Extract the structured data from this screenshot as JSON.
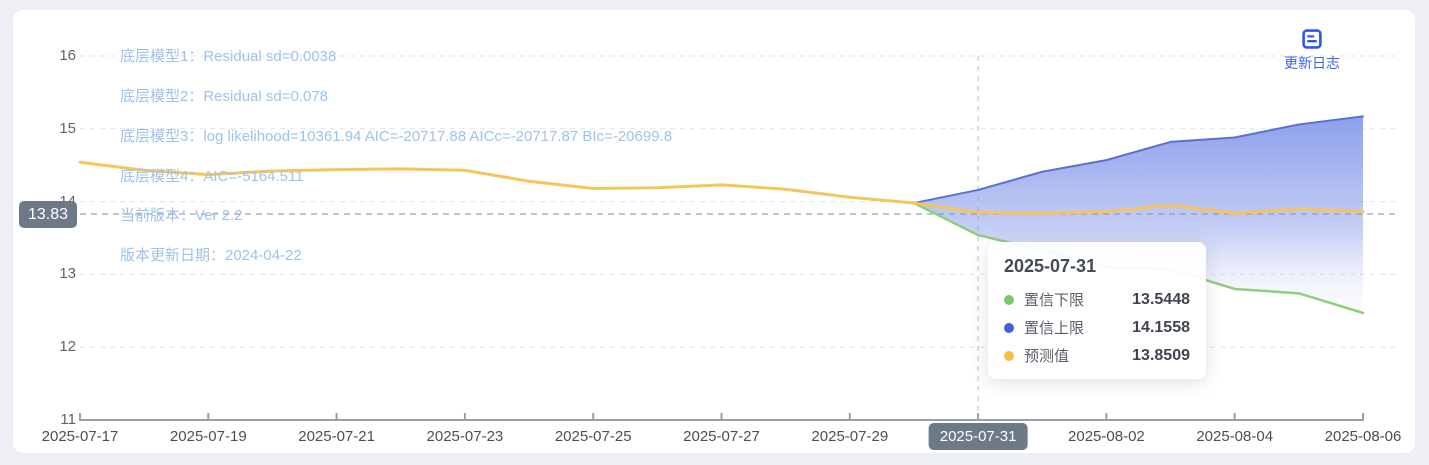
{
  "page": {
    "background": "#edeff4",
    "card_background": "#ffffff"
  },
  "header": {
    "update_log_label": "更新日志",
    "accent_color": "#3c63ee"
  },
  "annotations": [
    "底层模型1：Residual sd=0.0038",
    "底层模型2：Residual sd=0.078",
    "底层模型3：log likelihood=10361.94 AIC=-20717.88 AICc=-20717.87 BIc=-20699.8",
    "底层模型4：AIC=-5164.511",
    "当前版本：Ver 2.2",
    "版本更新日期：2024-04-22"
  ],
  "y_axis_marker": {
    "label": "13.83",
    "value": 13.83,
    "badge_color": "#6e7988"
  },
  "tooltip": {
    "title": "2025-07-31",
    "rows": [
      {
        "label": "置信下限",
        "value": "13.5448",
        "color": "#7cc66d"
      },
      {
        "label": "置信上限",
        "value": "14.1558",
        "color": "#4560cf"
      },
      {
        "label": "预测值",
        "value": "13.8509",
        "color": "#f7bd45"
      }
    ]
  },
  "chart_data": {
    "type": "line",
    "title": "",
    "x": [
      "2025-07-17",
      "2025-07-18",
      "2025-07-19",
      "2025-07-20",
      "2025-07-21",
      "2025-07-22",
      "2025-07-23",
      "2025-07-24",
      "2025-07-25",
      "2025-07-26",
      "2025-07-27",
      "2025-07-28",
      "2025-07-29",
      "2025-07-30",
      "2025-07-31",
      "2025-08-01",
      "2025-08-02",
      "2025-08-03",
      "2025-08-04",
      "2025-08-05",
      "2025-08-06"
    ],
    "tick_every": 2,
    "selected_x": "2025-07-31",
    "vline_x": "2025-07-31",
    "ylim": [
      11,
      16
    ],
    "y_ticks": [
      11,
      12,
      13,
      14,
      15,
      16
    ],
    "grid": true,
    "series": [
      {
        "name": "预测值",
        "color": "#f6c45c",
        "width": 3,
        "start_index": 0,
        "values": [
          14.54,
          14.43,
          14.37,
          14.42,
          14.44,
          14.45,
          14.43,
          14.28,
          14.18,
          14.19,
          14.23,
          14.17,
          14.06,
          13.98,
          13.85,
          13.84,
          13.86,
          13.95,
          13.84,
          13.9,
          13.86
        ]
      },
      {
        "name": "置信上限",
        "color": "#5872d2",
        "width": 2,
        "start_index": 13,
        "values": [
          13.98,
          14.16,
          14.41,
          14.57,
          14.82,
          14.88,
          15.06,
          15.17
        ]
      },
      {
        "name": "置信下限",
        "color": "#8fce7c",
        "width": 2.5,
        "start_index": 13,
        "values": [
          13.98,
          13.54,
          13.33,
          13.1,
          13.07,
          12.8,
          12.74,
          12.47
        ]
      }
    ],
    "band": {
      "upper": "置信上限",
      "lower": "置信下限",
      "gradient_top": "#8095e8",
      "gradient_bottom": "#ffffff"
    },
    "marker_line": {
      "value": 13.83
    }
  }
}
